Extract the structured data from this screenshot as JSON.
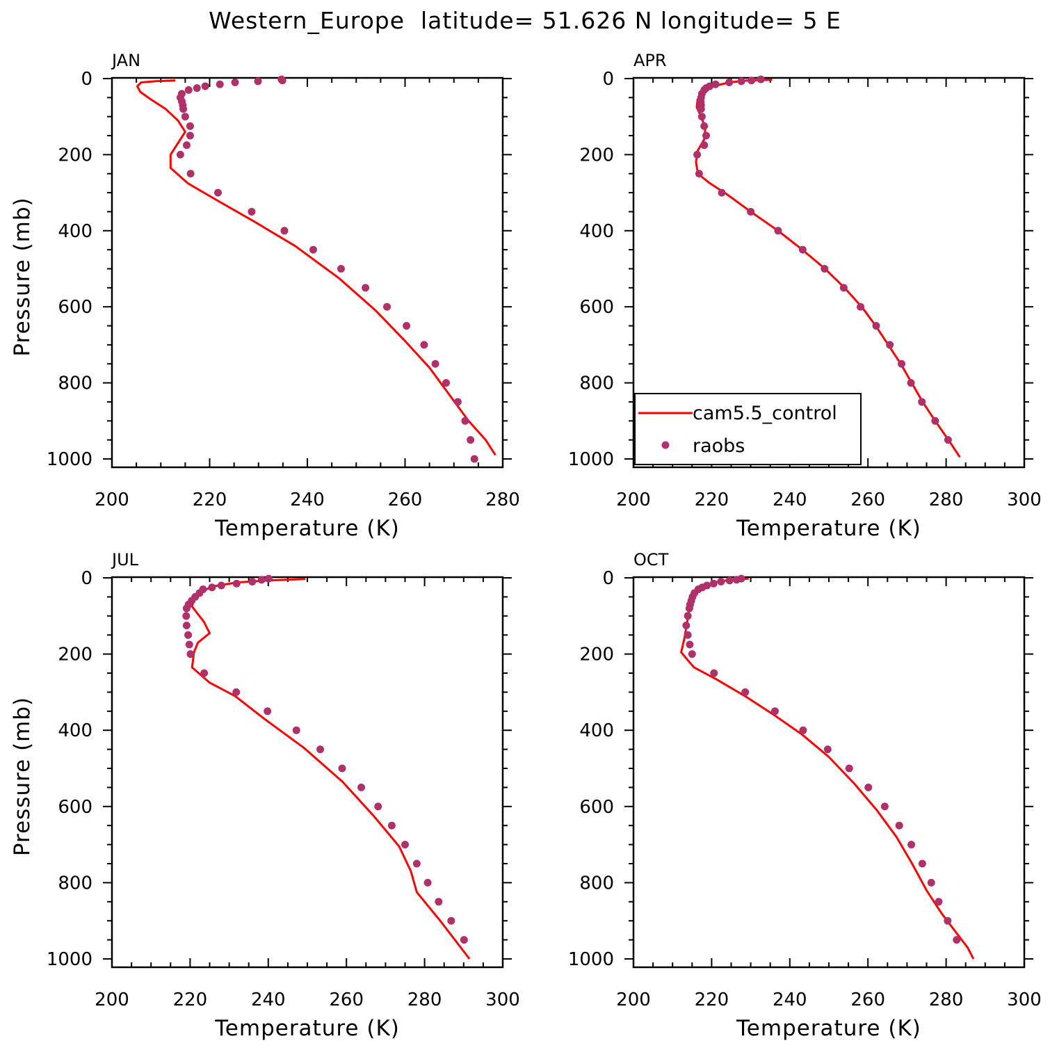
{
  "figure": {
    "title": "Western_Europe  latitude= 51.626 N longitude= 5 E"
  },
  "legend": {
    "model_label": "cam5.5_control",
    "obs_label": "raobs",
    "placement": "lower-left of APR panel"
  },
  "colors": {
    "model_line": "#ff0000",
    "obs_marker": "#b0306a",
    "axes": "#000000"
  },
  "chart_data": [
    {
      "type": "line",
      "panel_label": "JAN",
      "xlabel": "Temperature (K)",
      "ylabel": "Pressure (mb)",
      "xlim": [
        200,
        280
      ],
      "ylim": [
        1000,
        0
      ],
      "x_ticks": [
        "200",
        "220",
        "240",
        "260",
        "280"
      ],
      "y_ticks": [
        "0",
        "200",
        "400",
        "600",
        "800",
        "1000"
      ],
      "grid": false,
      "series": [
        {
          "name": "cam5.5_control",
          "style": "line",
          "points": [
            [
              213,
              5
            ],
            [
              209,
              7
            ],
            [
              206,
              10
            ],
            [
              205.2,
              20
            ],
            [
              205.8,
              35
            ],
            [
              208,
              55
            ],
            [
              211,
              80
            ],
            [
              213.5,
              110
            ],
            [
              215,
              140
            ],
            [
              213.5,
              170
            ],
            [
              212,
              200
            ],
            [
              212,
              235
            ],
            [
              215.5,
              275
            ],
            [
              221.5,
              320
            ],
            [
              229,
              375
            ],
            [
              237.5,
              440
            ],
            [
              246.5,
              525
            ],
            [
              254,
              610
            ],
            [
              260,
              690
            ],
            [
              265,
              760
            ],
            [
              269,
              830
            ],
            [
              273,
              900
            ],
            [
              276.5,
              950
            ],
            [
              278.5,
              990
            ]
          ]
        },
        {
          "name": "raobs",
          "style": "markers",
          "points": [
            [
              234.7,
              2
            ],
            [
              234.9,
              5
            ],
            [
              229.9,
              7
            ],
            [
              225.2,
              10
            ],
            [
              222.1,
              15
            ],
            [
              219.1,
              20
            ],
            [
              217.4,
              25
            ],
            [
              215.7,
              30
            ],
            [
              214.3,
              40
            ],
            [
              214.0,
              50
            ],
            [
              214.3,
              60
            ],
            [
              214.5,
              70
            ],
            [
              214.6,
              80
            ],
            [
              215.0,
              100
            ],
            [
              216.0,
              125
            ],
            [
              216.0,
              150
            ],
            [
              215.3,
              175
            ],
            [
              214.0,
              200
            ],
            [
              216.1,
              250
            ],
            [
              221.7,
              300
            ],
            [
              228.6,
              350
            ],
            [
              235.3,
              400
            ],
            [
              241.2,
              450
            ],
            [
              246.9,
              500
            ],
            [
              251.9,
              550
            ],
            [
              256.3,
              600
            ],
            [
              260.3,
              650
            ],
            [
              263.9,
              700
            ],
            [
              266.2,
              750
            ],
            [
              268.4,
              800
            ],
            [
              270.8,
              850
            ],
            [
              272.3,
              900
            ],
            [
              273.4,
              950
            ],
            [
              274.2,
              1000
            ]
          ]
        }
      ]
    },
    {
      "type": "line",
      "panel_label": "APR",
      "xlabel": "Temperature (K)",
      "ylabel": "",
      "xlim": [
        200,
        300
      ],
      "ylim": [
        1000,
        0
      ],
      "x_ticks": [
        "200",
        "220",
        "240",
        "260",
        "280",
        "300"
      ],
      "y_ticks": [
        "0",
        "200",
        "400",
        "600",
        "800",
        "1000"
      ],
      "grid": false,
      "series": [
        {
          "name": "cam5.5_control",
          "style": "line",
          "points": [
            [
              235.5,
              3
            ],
            [
              229,
              5
            ],
            [
              224.5,
              10
            ],
            [
              220.5,
              20
            ],
            [
              218,
              35
            ],
            [
              216.4,
              55
            ],
            [
              216.2,
              75
            ],
            [
              217.3,
              100
            ],
            [
              218.4,
              130
            ],
            [
              218.1,
              160
            ],
            [
              216.4,
              190
            ],
            [
              216.0,
              220
            ],
            [
              216.5,
              250
            ],
            [
              219.5,
              275
            ],
            [
              224,
              305
            ],
            [
              230,
              350
            ],
            [
              237,
              400
            ],
            [
              243.2,
              450
            ],
            [
              249,
              500
            ],
            [
              254,
              550
            ],
            [
              258.4,
              600
            ],
            [
              262,
              650
            ],
            [
              265.2,
              700
            ],
            [
              268.4,
              750
            ],
            [
              271.2,
              800
            ],
            [
              274,
              850
            ],
            [
              277.2,
              900
            ],
            [
              280.6,
              950
            ],
            [
              283.5,
              995
            ]
          ]
        },
        {
          "name": "raobs",
          "style": "markers",
          "points": [
            [
              232.6,
              2
            ],
            [
              230.2,
              5
            ],
            [
              227.6,
              7
            ],
            [
              224.5,
              10
            ],
            [
              221.0,
              15
            ],
            [
              219.5,
              20
            ],
            [
              218.6,
              25
            ],
            [
              218.1,
              30
            ],
            [
              217.5,
              40
            ],
            [
              217.3,
              50
            ],
            [
              217.2,
              60
            ],
            [
              217.3,
              70
            ],
            [
              217.3,
              80
            ],
            [
              217.5,
              100
            ],
            [
              218.1,
              125
            ],
            [
              218.6,
              150
            ],
            [
              218.1,
              175
            ],
            [
              216.3,
              200
            ],
            [
              216.8,
              250
            ],
            [
              222.6,
              300
            ],
            [
              230.0,
              350
            ],
            [
              237.0,
              400
            ],
            [
              243.3,
              450
            ],
            [
              248.9,
              500
            ],
            [
              253.8,
              550
            ],
            [
              258.1,
              600
            ],
            [
              262.1,
              650
            ],
            [
              265.6,
              700
            ],
            [
              268.6,
              750
            ],
            [
              271.0,
              800
            ],
            [
              273.8,
              850
            ],
            [
              277.2,
              900
            ],
            [
              280.5,
              950
            ]
          ]
        }
      ]
    },
    {
      "type": "line",
      "panel_label": "JUL",
      "xlabel": "Temperature (K)",
      "ylabel": "Pressure (mb)",
      "xlim": [
        200,
        300
      ],
      "ylim": [
        1000,
        0
      ],
      "x_ticks": [
        "200",
        "220",
        "240",
        "260",
        "280",
        "300"
      ],
      "y_ticks": [
        "0",
        "200",
        "400",
        "600",
        "800",
        "1000"
      ],
      "grid": false,
      "series": [
        {
          "name": "cam5.5_control",
          "style": "line",
          "points": [
            [
              249.5,
              3
            ],
            [
              240,
              7
            ],
            [
              232,
              12
            ],
            [
              226,
              22
            ],
            [
              223,
              35
            ],
            [
              221,
              55
            ],
            [
              220.5,
              75
            ],
            [
              222,
              95
            ],
            [
              223.5,
              115
            ],
            [
              225,
              145
            ],
            [
              222,
              170
            ],
            [
              221,
              195
            ],
            [
              220.5,
              235
            ],
            [
              225,
              275
            ],
            [
              231.5,
              310
            ],
            [
              239,
              370
            ],
            [
              249,
              445
            ],
            [
              259,
              535
            ],
            [
              267,
              625
            ],
            [
              273.5,
              705
            ],
            [
              276.5,
              770
            ],
            [
              278,
              825
            ],
            [
              284,
              900
            ],
            [
              291.5,
              1000
            ]
          ]
        },
        {
          "name": "raobs",
          "style": "markers",
          "points": [
            [
              240.1,
              2
            ],
            [
              238.3,
              5
            ],
            [
              235.9,
              10
            ],
            [
              231.9,
              15
            ],
            [
              228.0,
              20
            ],
            [
              225.6,
              25
            ],
            [
              223.3,
              30
            ],
            [
              222.4,
              40
            ],
            [
              221.3,
              50
            ],
            [
              220.4,
              60
            ],
            [
              219.6,
              70
            ],
            [
              219.1,
              80
            ],
            [
              219.0,
              100
            ],
            [
              219.1,
              125
            ],
            [
              219.5,
              150
            ],
            [
              219.8,
              175
            ],
            [
              220.1,
              200
            ],
            [
              223.6,
              250
            ],
            [
              231.8,
              300
            ],
            [
              239.8,
              350
            ],
            [
              247.2,
              400
            ],
            [
              253.3,
              450
            ],
            [
              258.9,
              500
            ],
            [
              263.8,
              550
            ],
            [
              268.1,
              600
            ],
            [
              271.6,
              650
            ],
            [
              275.0,
              700
            ],
            [
              278.0,
              750
            ],
            [
              280.8,
              800
            ],
            [
              283.6,
              850
            ],
            [
              286.8,
              900
            ],
            [
              290.1,
              950
            ]
          ]
        }
      ]
    },
    {
      "type": "line",
      "panel_label": "OCT",
      "xlabel": "Temperature (K)",
      "ylabel": "",
      "xlim": [
        200,
        300
      ],
      "ylim": [
        1000,
        0
      ],
      "x_ticks": [
        "200",
        "220",
        "240",
        "260",
        "280",
        "300"
      ],
      "y_ticks": [
        "0",
        "200",
        "400",
        "600",
        "800",
        "1000"
      ],
      "grid": false,
      "series": [
        {
          "name": "cam5.5_control",
          "style": "line",
          "points": [
            [
              229.5,
              2
            ],
            [
              225,
              5
            ],
            [
              220.5,
              12
            ],
            [
              217.5,
              25
            ],
            [
              215.5,
              45
            ],
            [
              214.5,
              70
            ],
            [
              214,
              100
            ],
            [
              213.5,
              130
            ],
            [
              213,
              160
            ],
            [
              212.2,
              195
            ],
            [
              213.8,
              215
            ],
            [
              215.5,
              235
            ],
            [
              221,
              265
            ],
            [
              228.5,
              310
            ],
            [
              236,
              360
            ],
            [
              243,
              410
            ],
            [
              250,
              470
            ],
            [
              256.5,
              540
            ],
            [
              262.3,
              610
            ],
            [
              267.3,
              680
            ],
            [
              271.3,
              750
            ],
            [
              275,
              820
            ],
            [
              278.8,
              880
            ],
            [
              282.5,
              930
            ],
            [
              285.5,
              970
            ],
            [
              287,
              1000
            ]
          ]
        },
        {
          "name": "raobs",
          "style": "markers",
          "points": [
            [
              227.6,
              2
            ],
            [
              226.4,
              5
            ],
            [
              224.6,
              7
            ],
            [
              222.4,
              10
            ],
            [
              220.5,
              15
            ],
            [
              218.8,
              20
            ],
            [
              217.6,
              25
            ],
            [
              216.6,
              30
            ],
            [
              215.6,
              40
            ],
            [
              215.1,
              50
            ],
            [
              214.8,
              60
            ],
            [
              214.5,
              70
            ],
            [
              214.3,
              80
            ],
            [
              213.9,
              100
            ],
            [
              213.5,
              125
            ],
            [
              213.9,
              150
            ],
            [
              214.4,
              175
            ],
            [
              215.0,
              200
            ],
            [
              220.6,
              250
            ],
            [
              228.6,
              300
            ],
            [
              236.2,
              350
            ],
            [
              243.4,
              400
            ],
            [
              249.7,
              450
            ],
            [
              255.2,
              500
            ],
            [
              260.1,
              550
            ],
            [
              264.3,
              600
            ],
            [
              268.0,
              650
            ],
            [
              271.1,
              700
            ],
            [
              273.9,
              750
            ],
            [
              276.2,
              800
            ],
            [
              278.1,
              850
            ],
            [
              280.4,
              900
            ],
            [
              282.7,
              950
            ]
          ]
        }
      ]
    }
  ]
}
